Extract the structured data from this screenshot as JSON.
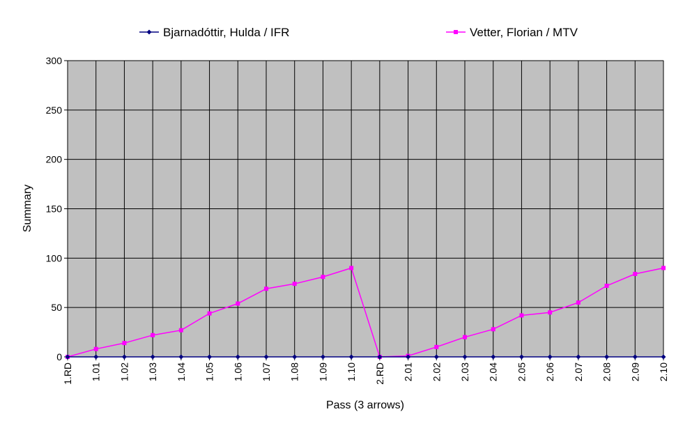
{
  "chart_data": {
    "type": "line",
    "x_label": "Pass (3 arrows)",
    "y_label": "Summary",
    "categories": [
      "1.RD",
      "1.01",
      "1.02",
      "1.03",
      "1.04",
      "1.05",
      "1.06",
      "1.07",
      "1.08",
      "1.09",
      "1.10",
      "2.RD",
      "2.01",
      "2.02",
      "2.03",
      "2.04",
      "2.05",
      "2.06",
      "2.07",
      "2.08",
      "2.09",
      "2.10"
    ],
    "series": [
      {
        "name": "Bjarnadóttir, Hulda / IFR",
        "color": "#000080",
        "marker": "diamond",
        "values": [
          0,
          0,
          0,
          0,
          0,
          0,
          0,
          0,
          0,
          0,
          0,
          0,
          0,
          0,
          0,
          0,
          0,
          0,
          0,
          0,
          0,
          0
        ]
      },
      {
        "name": "Vetter, Florian / MTV",
        "color": "#ff00ff",
        "marker": "square",
        "values": [
          0,
          8,
          14,
          22,
          27,
          44,
          54,
          69,
          74,
          81,
          90,
          0,
          1,
          10,
          20,
          28,
          42,
          45,
          55,
          72,
          84,
          90
        ]
      }
    ],
    "ylim": [
      0,
      300
    ],
    "yticks": [
      0,
      50,
      100,
      150,
      200,
      250,
      300
    ],
    "grid": true,
    "plot_background": "#c0c0c0"
  }
}
